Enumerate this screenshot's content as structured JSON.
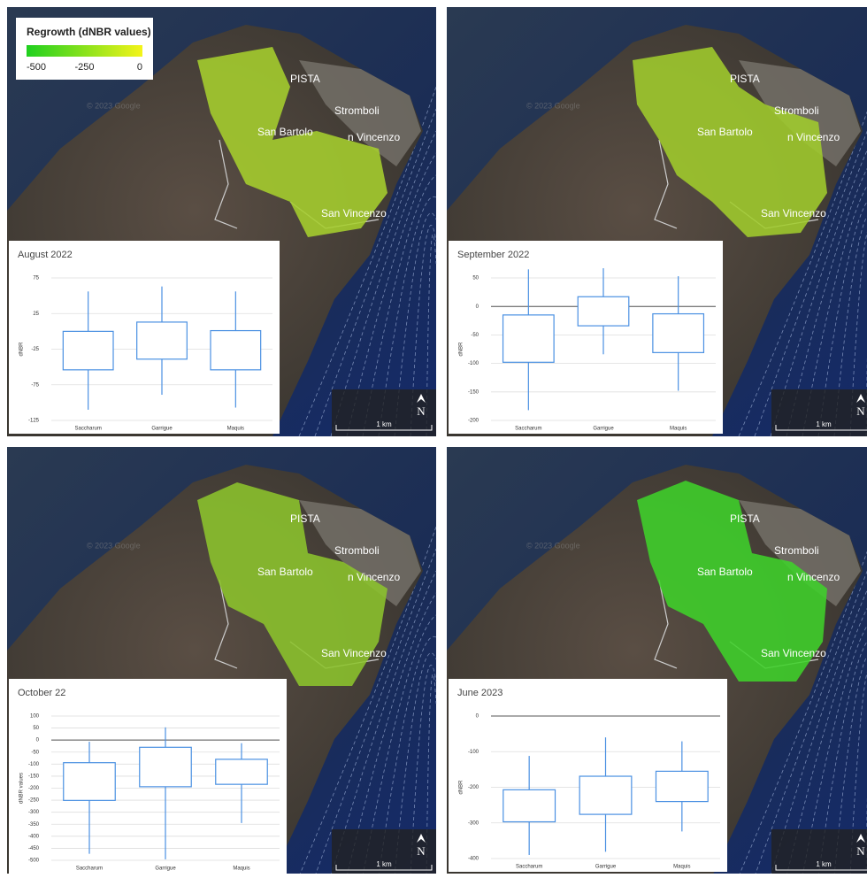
{
  "legend": {
    "title": "Regrowth (dNBR values)",
    "range": [
      -500,
      0
    ],
    "ticks": [
      -500,
      -250,
      0
    ],
    "colors": [
      "#1fd01f",
      "#f4f41a"
    ]
  },
  "map_labels": [
    "PISTA",
    "Stromboli",
    "San Bartolo",
    "n Vincenzo",
    "San Vincenzo"
  ],
  "watermark": "© 2023 Google",
  "scale": "1 km",
  "north": "N",
  "chart_data": [
    {
      "type": "box",
      "title": "August 2022",
      "ylabel": "dNBR",
      "categories": [
        "Saccharum",
        "Garrigue",
        "Maquis"
      ],
      "low": [
        -110,
        -89,
        -107
      ],
      "q1": [
        -54,
        -39,
        -54
      ],
      "q3": [
        0,
        13,
        1
      ],
      "high": [
        56,
        63,
        56
      ],
      "ylim": [
        -125,
        75
      ],
      "yticks": [
        -125,
        -75,
        -25,
        25,
        75
      ],
      "zero_line": false,
      "color": "#4a90e2"
    },
    {
      "type": "box",
      "title": "September 2022",
      "ylabel": "dNBR",
      "categories": [
        "Saccharum",
        "Garrigue",
        "Maquis"
      ],
      "low": [
        -182,
        -84,
        -148
      ],
      "q1": [
        -98,
        -34,
        -81
      ],
      "q3": [
        -15,
        17,
        -13
      ],
      "high": [
        65,
        67,
        53
      ],
      "ylim": [
        -200,
        50
      ],
      "yticks": [
        -200,
        -150,
        -100,
        -50,
        0,
        50
      ],
      "zero_line": true,
      "color": "#4a90e2"
    },
    {
      "type": "box",
      "title": "October 22",
      "ylabel": "dNBR values",
      "categories": [
        "Saccharum",
        "Garrigue",
        "Maquis"
      ],
      "low": [
        -473,
        -496,
        -345
      ],
      "q1": [
        -251,
        -194,
        -184
      ],
      "q3": [
        -94,
        -30,
        -80
      ],
      "high": [
        -7,
        53,
        -13
      ],
      "ylim": [
        -500,
        100
      ],
      "yticks": [
        -500,
        -450,
        -400,
        -350,
        -300,
        -250,
        -200,
        -150,
        -100,
        -50,
        0,
        50,
        100
      ],
      "zero_line": true,
      "color": "#4a90e2"
    },
    {
      "type": "box",
      "title": "June 2023",
      "ylabel": "dNBR",
      "categories": [
        "Saccharum",
        "Garrigue",
        "Maquis"
      ],
      "low": [
        -390,
        -381,
        -324
      ],
      "q1": [
        -297,
        -276,
        -240
      ],
      "q3": [
        -207,
        -169,
        -155
      ],
      "high": [
        -112,
        -60,
        -71
      ],
      "ylim": [
        -400,
        0
      ],
      "yticks": [
        -400,
        -300,
        -200,
        -100,
        0
      ],
      "zero_line": true,
      "color": "#4a90e2"
    }
  ]
}
